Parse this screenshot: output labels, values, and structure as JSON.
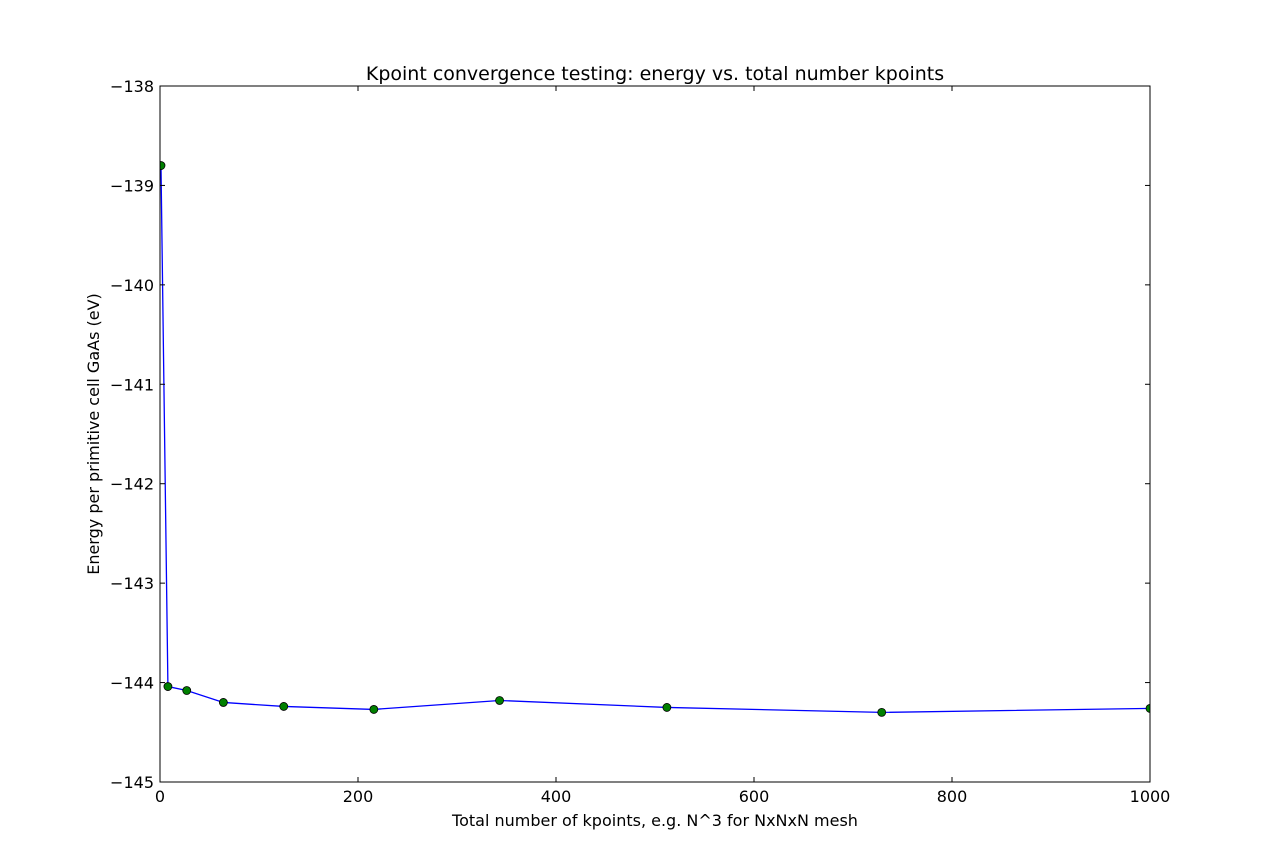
{
  "chart_data": {
    "type": "line",
    "title": "Kpoint convergence testing: energy vs. total number kpoints",
    "xlabel": "Total number of kpoints, e.g. N^3 for NxNxN mesh",
    "ylabel": "Energy per primitive cell GaAs (eV)",
    "xlim": [
      0,
      1000
    ],
    "ylim": [
      -145,
      -138
    ],
    "xticks": [
      0,
      200,
      400,
      600,
      800,
      1000
    ],
    "xtick_labels": [
      "0",
      "200",
      "400",
      "600",
      "800",
      "1000"
    ],
    "yticks": [
      -145,
      -144,
      -143,
      -142,
      -141,
      -140,
      -139,
      -138
    ],
    "ytick_labels": [
      "−145",
      "−144",
      "−143",
      "−142",
      "−141",
      "−140",
      "−139",
      "−138"
    ],
    "grid": false,
    "line_color": "#0000ff",
    "marker_color": "#008000",
    "series": [
      {
        "x": [
          1,
          8,
          27,
          64,
          125,
          216,
          343,
          512,
          729,
          1000
        ],
        "y": [
          -138.8,
          -144.04,
          -144.08,
          -144.2,
          -144.24,
          -144.27,
          -144.18,
          -144.25,
          -144.3,
          -144.26
        ]
      }
    ]
  }
}
